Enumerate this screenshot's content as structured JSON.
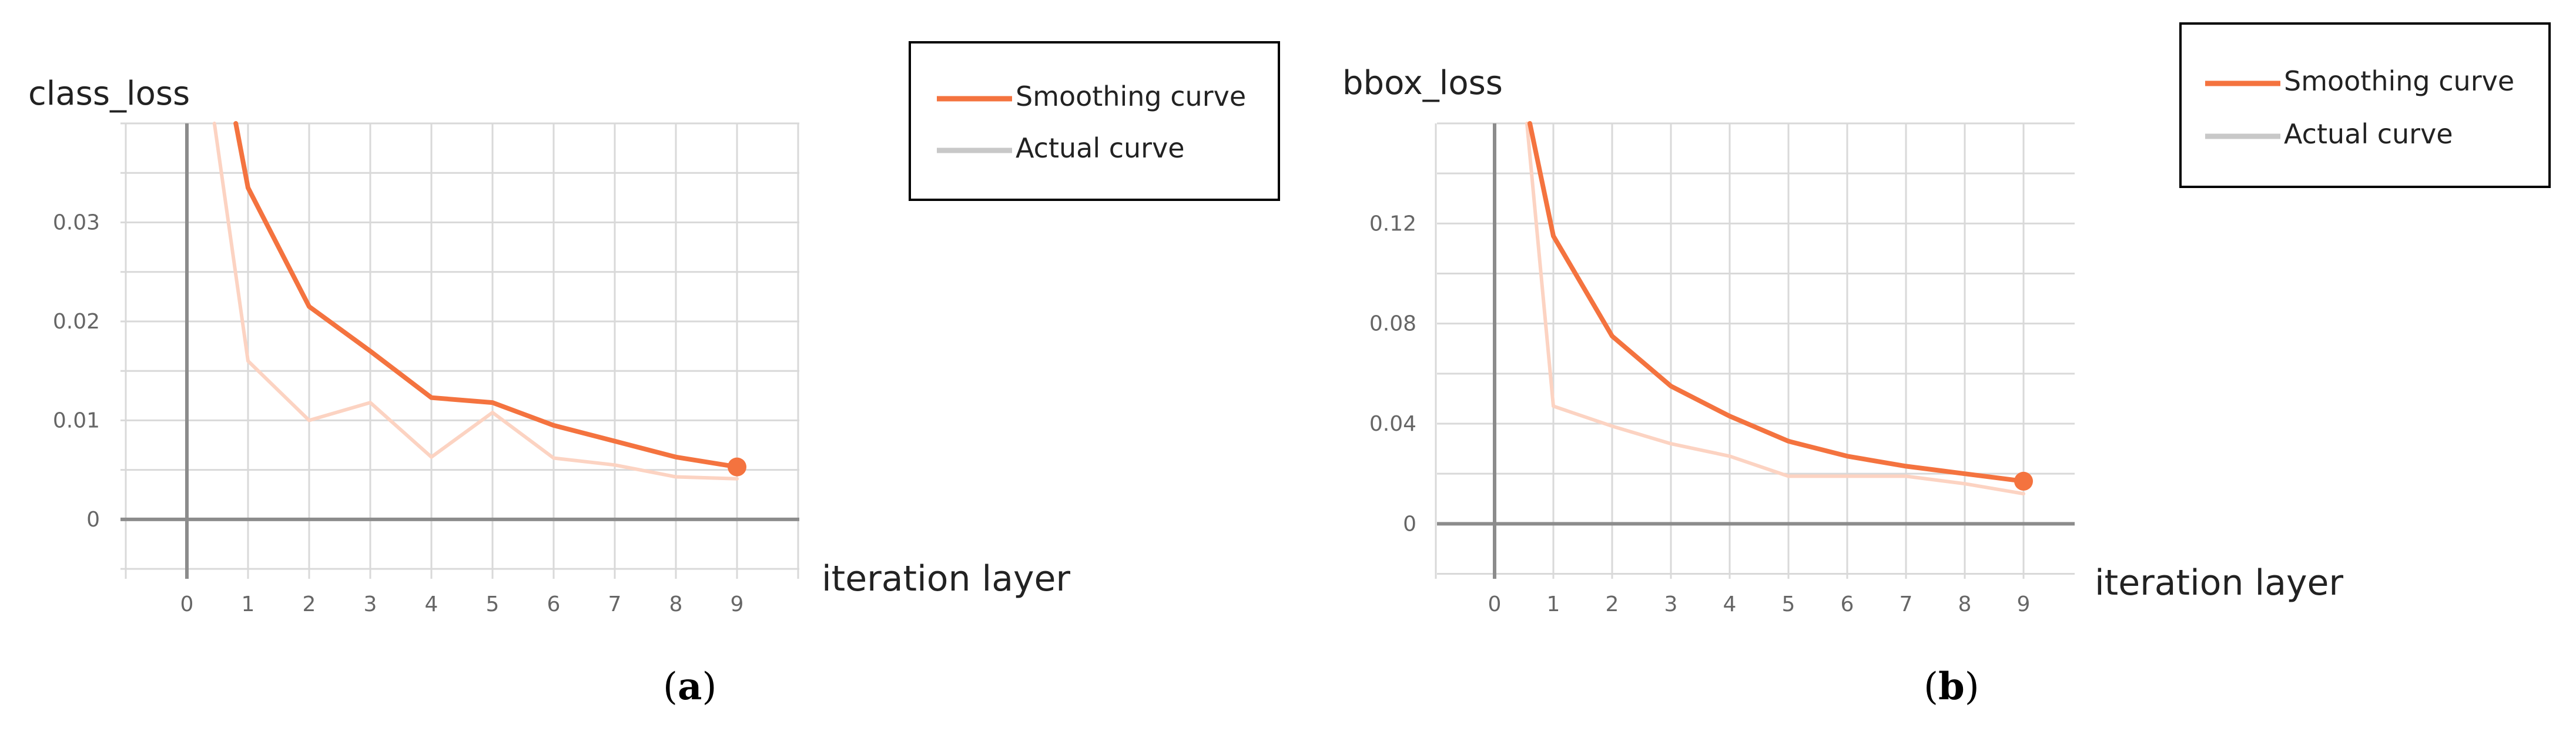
{
  "colors": {
    "smoothing": "#f4733f",
    "actual": "#fcd3c2",
    "legend_actual": "#c8c8c8",
    "grid": "#d9d9d9",
    "axis": "#8c8c8c"
  },
  "chart_data": [
    {
      "type": "line",
      "title": "class_loss",
      "xlabel": "iteration layer",
      "ylabel": "",
      "caption_letter": "a",
      "x_ticks": [
        "0",
        "1",
        "2",
        "3",
        "4",
        "5",
        "6",
        "7",
        "8",
        "9"
      ],
      "y_ticks": [
        "0",
        "0.01",
        "0.02",
        "0.03"
      ],
      "y_tick_values": [
        0,
        0.01,
        0.02,
        0.03
      ],
      "xlim": [
        -1,
        10
      ],
      "ylim": [
        -0.006,
        0.04
      ],
      "grid": true,
      "legend_position": "top-right",
      "legend": [
        "Smoothing curve",
        "Actual curve"
      ],
      "series": [
        {
          "name": "Smoothing curve",
          "x": [
            0.8,
            1,
            2,
            3,
            4,
            5,
            6,
            7,
            8,
            9
          ],
          "y": [
            0.04,
            0.0335,
            0.0215,
            0.017,
            0.0123,
            0.0118,
            0.0095,
            0.0079,
            0.0063,
            0.0053
          ],
          "end_marker": true
        },
        {
          "name": "Actual curve",
          "x": [
            0.45,
            1,
            2,
            3,
            4,
            5,
            6,
            7,
            8,
            9
          ],
          "y": [
            0.04,
            0.016,
            0.01,
            0.0118,
            0.0063,
            0.0108,
            0.0062,
            0.0055,
            0.0043,
            0.0041
          ],
          "end_marker": false
        }
      ]
    },
    {
      "type": "line",
      "title": "bbox_loss",
      "xlabel": "iteration layer",
      "ylabel": "",
      "caption_letter": "b",
      "x_ticks": [
        "0",
        "1",
        "2",
        "3",
        "4",
        "5",
        "6",
        "7",
        "8",
        "9"
      ],
      "y_ticks": [
        "0",
        "0.04",
        "0.08",
        "0.12"
      ],
      "y_tick_values": [
        0,
        0.04,
        0.08,
        0.12
      ],
      "xlim": [
        -1,
        10
      ],
      "ylim": [
        -0.022,
        0.16
      ],
      "grid": true,
      "legend_position": "top-right",
      "legend": [
        "Smoothing curve",
        "Actual curve"
      ],
      "series": [
        {
          "name": "Smoothing curve",
          "x": [
            0.6,
            1,
            2,
            3,
            4,
            5,
            6,
            7,
            8,
            9
          ],
          "y": [
            0.16,
            0.115,
            0.075,
            0.055,
            0.043,
            0.033,
            0.027,
            0.023,
            0.02,
            0.017
          ],
          "end_marker": true
        },
        {
          "name": "Actual curve",
          "x": [
            0.55,
            1,
            2,
            3,
            4,
            5,
            6,
            7,
            8,
            9
          ],
          "y": [
            0.16,
            0.047,
            0.039,
            0.032,
            0.027,
            0.019,
            0.019,
            0.019,
            0.016,
            0.012
          ],
          "end_marker": false
        }
      ]
    }
  ]
}
